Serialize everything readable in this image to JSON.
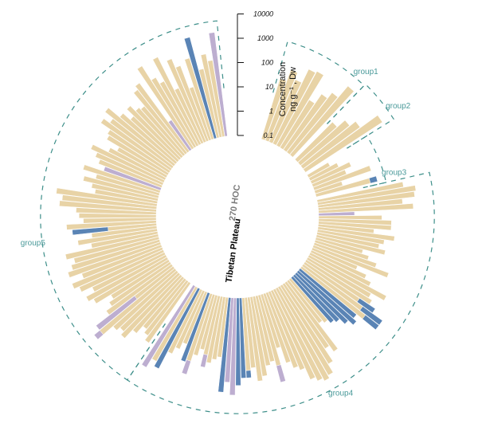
{
  "chart_data": {
    "type": "bar",
    "subtype": "circular-stacked-bar",
    "center_labels": [
      "270 HOC",
      "Tibetan Plateau"
    ],
    "axis": {
      "title": "Concentration",
      "unit": "ng g⁻¹ , Dw",
      "scale": "log10",
      "ticks": [
        "0.1",
        "1",
        "10",
        "100",
        "1000",
        "10000"
      ],
      "range": [
        0.1,
        10000
      ]
    },
    "colors": {
      "beige": "#e8d3a6",
      "blue": "#5a84b5",
      "purple": "#bdaed0",
      "group_outline": "#3e8f8a"
    },
    "groups": [
      {
        "name": "group1",
        "start_deg": 17,
        "end_deg": 43,
        "bars": [
          [
            40,
            "b"
          ],
          [
            120,
            "b"
          ],
          [
            60,
            "b"
          ],
          [
            250,
            "b"
          ],
          [
            300,
            "b"
          ],
          [
            20,
            "b"
          ],
          [
            60,
            "b"
          ],
          [
            120,
            "b"
          ],
          [
            500,
            "b"
          ]
        ]
      },
      {
        "name": "group2",
        "start_deg": 45,
        "end_deg": 57,
        "bars": [
          [
            15,
            "b"
          ],
          [
            40,
            "b"
          ],
          [
            80,
            "b"
          ],
          [
            600,
            "b"
          ]
        ]
      },
      {
        "name": "group3",
        "start_deg": 59,
        "end_deg": 76,
        "bars": [
          [
            1,
            "b"
          ],
          [
            2,
            "b"
          ],
          [
            6,
            "b"
          ],
          [
            3,
            "b"
          ],
          [
            30,
            "b"
          ],
          [
            1.5,
            "b"
          ],
          [
            40,
            "b",
            20,
            "u"
          ]
        ]
      },
      {
        "name": "group4",
        "start_deg": 78,
        "end_deg": 213,
        "bars": [
          [
            400,
            "b"
          ],
          [
            1200,
            "b"
          ],
          [
            1000,
            "b"
          ],
          [
            300,
            "b"
          ],
          [
            800,
            "b"
          ],
          [
            3,
            "p"
          ],
          [
            40,
            "b"
          ],
          [
            100,
            "b"
          ],
          [
            100,
            "b"
          ],
          [
            20,
            "b"
          ],
          [
            150,
            "b"
          ],
          [
            60,
            "b"
          ],
          [
            40,
            "b"
          ],
          [
            80,
            "b"
          ],
          [
            10,
            "b"
          ],
          [
            20,
            "b"
          ],
          [
            50,
            "b"
          ],
          [
            200,
            "b"
          ],
          [
            10,
            "b"
          ],
          [
            30,
            "b"
          ],
          [
            60,
            "b"
          ],
          [
            400,
            "b"
          ],
          [
            100,
            "b"
          ],
          [
            150,
            "b"
          ],
          [
            50,
            "b",
            300,
            "u"
          ],
          [
            100,
            "b",
            1000,
            "u"
          ],
          [
            200,
            "b",
            1000,
            "u"
          ],
          [
            100,
            "u"
          ],
          [
            150,
            "u"
          ],
          [
            80,
            "u"
          ],
          [
            40,
            "u"
          ],
          [
            30,
            "u"
          ],
          [
            20,
            "b"
          ],
          [
            15,
            "b"
          ],
          [
            300,
            "b"
          ],
          [
            150,
            "b"
          ],
          [
            600,
            "b"
          ],
          [
            1500,
            "b"
          ],
          [
            2000,
            "b"
          ],
          [
            1500,
            "b"
          ],
          [
            1000,
            "b"
          ],
          [
            300,
            "b"
          ],
          [
            200,
            "b"
          ],
          [
            100,
            "b"
          ],
          [
            20,
            "b"
          ],
          [
            100,
            "b",
            500,
            "p"
          ],
          [
            60,
            "b"
          ],
          [
            80,
            "b"
          ],
          [
            200,
            "b"
          ],
          [
            300,
            "b"
          ],
          [
            80,
            "b"
          ],
          [
            100,
            "b",
            200,
            "u"
          ],
          [
            200,
            "u"
          ],
          [
            400,
            "u"
          ],
          [
            1000,
            "p"
          ],
          [
            300,
            "p"
          ],
          [
            800,
            "u"
          ],
          [
            30,
            "b"
          ],
          [
            40,
            "b"
          ],
          [
            60,
            "b"
          ],
          [
            30,
            "b",
            100,
            "p"
          ],
          [
            20,
            "b"
          ],
          [
            40,
            "b"
          ],
          [
            80,
            "b",
            300,
            "p"
          ],
          [
            100,
            "u"
          ],
          [
            20,
            "b"
          ],
          [
            40,
            "b"
          ],
          [
            80,
            "b"
          ],
          [
            500,
            "u"
          ],
          [
            300,
            "b"
          ],
          [
            800,
            "p"
          ]
        ]
      },
      {
        "name": "group5",
        "start_deg": 215,
        "end_deg": 353,
        "bars": [
          [
            100,
            "b"
          ],
          [
            60,
            "b"
          ],
          [
            40,
            "b"
          ],
          [
            100,
            "b"
          ],
          [
            300,
            "b"
          ],
          [
            200,
            "b"
          ],
          [
            300,
            "b"
          ],
          [
            1000,
            "b",
            2000,
            "p"
          ],
          [
            10,
            "b",
            1000,
            "p"
          ],
          [
            200,
            "b"
          ],
          [
            100,
            "b"
          ],
          [
            60,
            "b"
          ],
          [
            300,
            "b"
          ],
          [
            500,
            "b"
          ],
          [
            200,
            "b"
          ],
          [
            600,
            "b"
          ],
          [
            1000,
            "b"
          ],
          [
            300,
            "b"
          ],
          [
            1000,
            "b"
          ],
          [
            600,
            "b"
          ],
          [
            400,
            "b"
          ],
          [
            800,
            "b"
          ],
          [
            60,
            "b"
          ],
          [
            200,
            "b"
          ],
          [
            50,
            "b"
          ],
          [
            10,
            "b",
            300,
            "u"
          ],
          [
            500,
            "b"
          ],
          [
            100,
            "b"
          ],
          [
            150,
            "b"
          ],
          [
            200,
            "b"
          ],
          [
            1000,
            "b"
          ],
          [
            800,
            "b"
          ],
          [
            1500,
            "b"
          ],
          [
            40,
            "b"
          ],
          [
            60,
            "b"
          ],
          [
            150,
            "b"
          ],
          [
            50,
            "b"
          ],
          [
            200,
            "b"
          ],
          [
            30,
            "p"
          ],
          [
            60,
            "b"
          ],
          [
            100,
            "b"
          ],
          [
            200,
            "b"
          ],
          [
            40,
            "b"
          ],
          [
            20,
            "b"
          ],
          [
            80,
            "b"
          ],
          [
            100,
            "b"
          ],
          [
            300,
            "b"
          ],
          [
            150,
            "b"
          ],
          [
            400,
            "b"
          ],
          [
            100,
            "b"
          ],
          [
            40,
            "b"
          ],
          [
            100,
            "b"
          ],
          [
            50,
            "b"
          ],
          [
            40,
            "b"
          ],
          [
            200,
            "b"
          ],
          [
            300,
            "b"
          ],
          [
            3,
            "p"
          ],
          [
            1000,
            "b"
          ],
          [
            200,
            "b"
          ],
          [
            100,
            "b"
          ],
          [
            1000,
            "b"
          ],
          [
            30,
            "b"
          ],
          [
            500,
            "b"
          ],
          [
            200,
            "b"
          ],
          [
            20,
            "b"
          ],
          [
            300,
            "b"
          ],
          [
            2000,
            "u"
          ],
          [
            80,
            "b"
          ],
          [
            300,
            "b"
          ],
          [
            150,
            "b"
          ],
          [
            2000,
            "p"
          ]
        ]
      }
    ]
  }
}
